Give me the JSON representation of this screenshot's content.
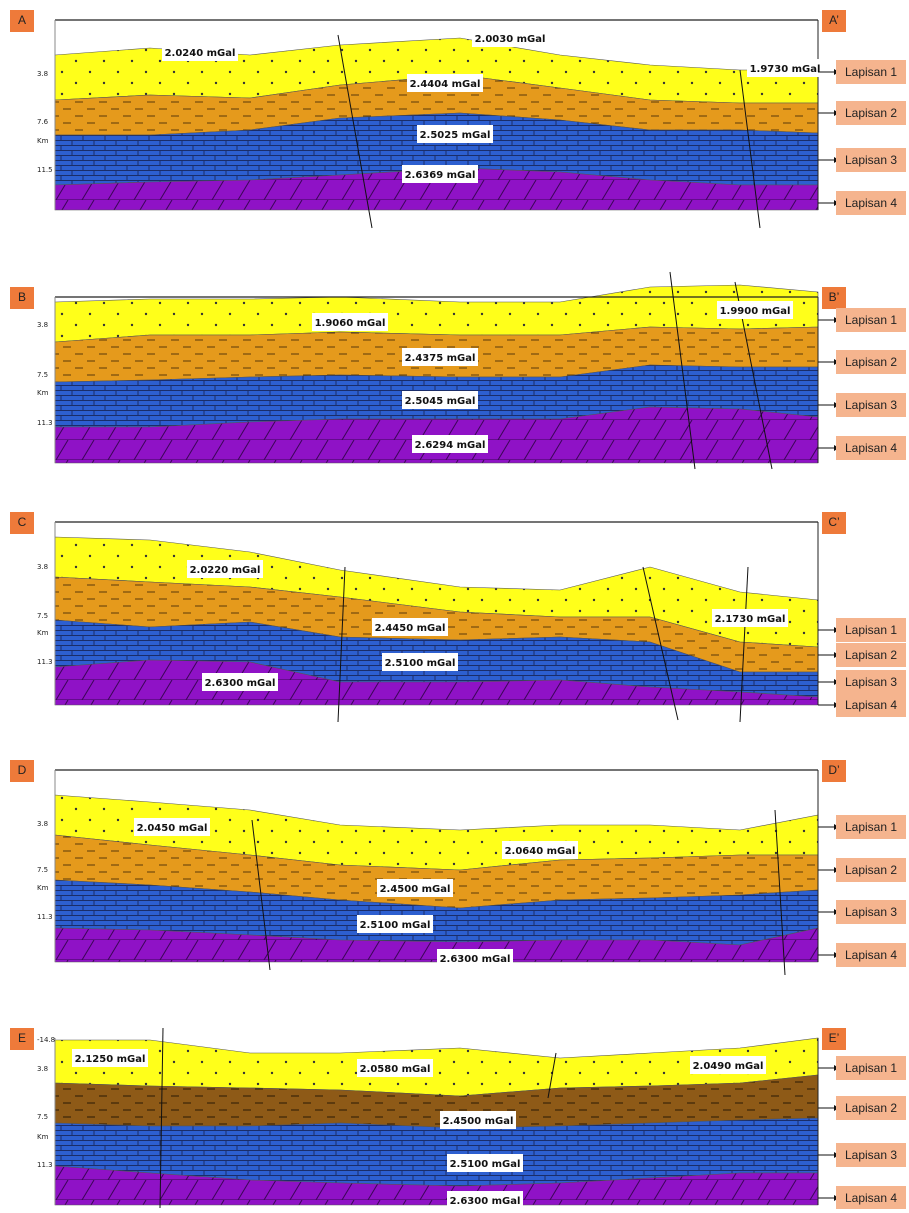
{
  "sections": [
    {
      "start": "A",
      "end": "A’",
      "depth_labels": [
        "3.8",
        "7.6",
        "Km",
        "11.5"
      ],
      "densities": [
        "2.0240 mGal",
        "2.0030 mGal",
        "1.9730 mGal",
        "2.4404 mGal",
        "2.5025 mGal",
        "2.6369 mGal"
      ],
      "layers": [
        "Lapisan 1",
        "Lapisan 2",
        "Lapisan 3",
        "Lapisan 4"
      ]
    },
    {
      "start": "B",
      "end": "B’",
      "depth_labels": [
        "3.8",
        "7.5",
        "Km",
        "11.3"
      ],
      "densities": [
        "1.9060 mGal",
        "1.9900 mGal",
        "2.4375 mGal",
        "2.5045 mGal",
        "2.6294 mGal"
      ],
      "layers": [
        "Lapisan 1",
        "Lapisan 2",
        "Lapisan 3",
        "Lapisan 4"
      ]
    },
    {
      "start": "C",
      "end": "C’",
      "depth_labels": [
        "3.8",
        "7.5",
        "Km",
        "11.3"
      ],
      "densities": [
        "2.0220 mGal",
        "2.1730 mGal",
        "2.4450 mGal",
        "2.5100 mGal",
        "2.6300 mGal"
      ],
      "layers": [
        "Lapisan 1",
        "Lapisan 2",
        "Lapisan 3",
        "Lapisan 4"
      ]
    },
    {
      "start": "D",
      "end": "D’",
      "depth_labels": [
        "3.8",
        "7.5",
        "Km",
        "11.3"
      ],
      "densities": [
        "2.0450 mGal",
        "2.0640 mGal",
        "2.4500 mGal",
        "2.5100 mGal",
        "2.6300 mGal"
      ],
      "layers": [
        "Lapisan 1",
        "Lapisan 2",
        "Lapisan 3",
        "Lapisan 4"
      ]
    },
    {
      "start": "E",
      "end": "E’",
      "depth_labels": [
        "-14.8",
        "3.8",
        "7.5",
        "Km",
        "11.3"
      ],
      "densities": [
        "2.1250 mGal",
        "2.0580 mGal",
        "2.0490 mGal",
        "2.4500 mGal",
        "2.5100 mGal",
        "2.6300 mGal"
      ],
      "layers": [
        "Lapisan 1",
        "Lapisan 2",
        "Lapisan 3",
        "Lapisan 4"
      ]
    }
  ]
}
